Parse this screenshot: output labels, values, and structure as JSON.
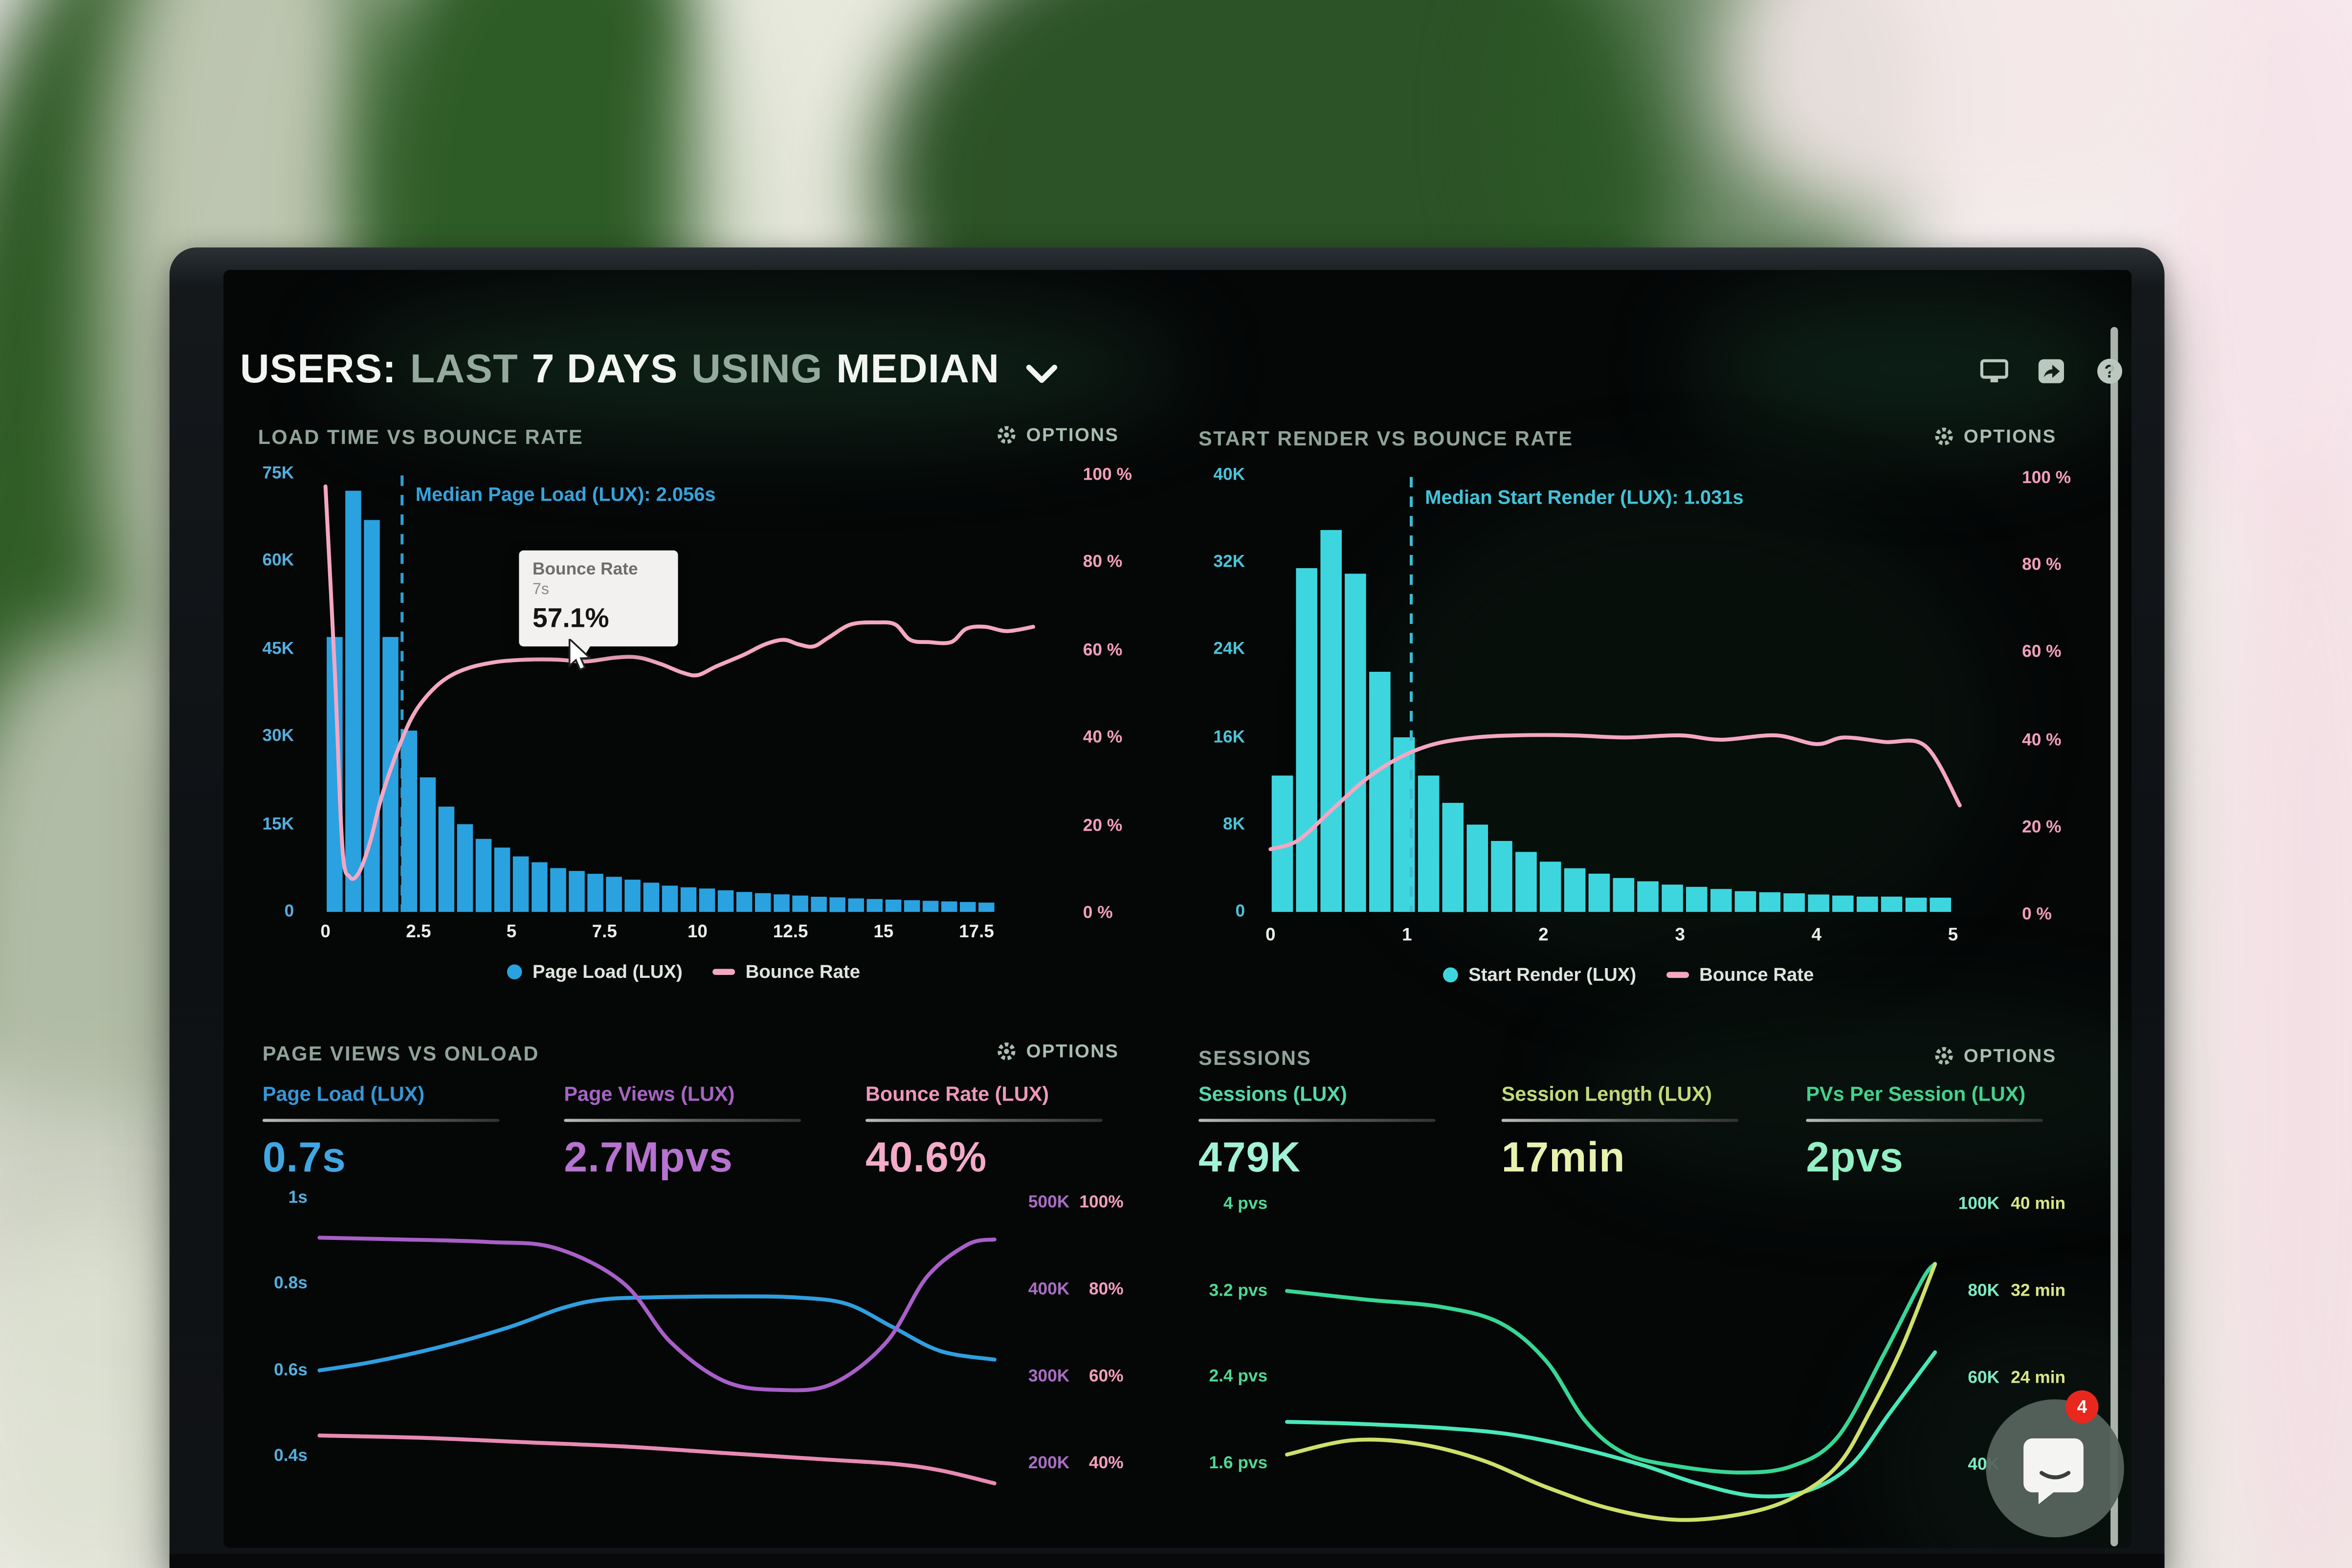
{
  "header": {
    "title_parts": [
      {
        "text": "USERS:",
        "muted": false
      },
      {
        "text": "LAST",
        "muted": true
      },
      {
        "text": "7 DAYS",
        "muted": false
      },
      {
        "text": "USING",
        "muted": true
      },
      {
        "text": "MEDIAN",
        "muted": false
      }
    ],
    "dropdown_icon": "chevron-down-icon",
    "toolbar_icons": [
      "display-icon",
      "share-icon",
      "help-icon"
    ]
  },
  "colors": {
    "screen_bg": "#050707",
    "bar_blue": "#2aa2e0",
    "bar_cyan": "#3ed6de",
    "line_pink": "#f4a7c3",
    "median_blue": "#36a3dd",
    "median_cyan": "#43c3d8",
    "badge_red": "#e8281e"
  },
  "panels": {
    "load_time": {
      "title": "LOAD TIME VS BOUNCE RATE",
      "options_label": "OPTIONS",
      "tooltip": {
        "title": "Bounce Rate",
        "x_value": "7s",
        "value": "57.1%"
      },
      "legend": [
        {
          "label": "Page Load (LUX)"
        },
        {
          "label": "Bounce Rate"
        }
      ]
    },
    "start_render": {
      "title": "START RENDER VS BOUNCE RATE",
      "options_label": "OPTIONS",
      "legend": [
        {
          "label": "Start Render (LUX)"
        },
        {
          "label": "Bounce Rate"
        }
      ]
    },
    "page_views": {
      "title": "PAGE VIEWS VS ONLOAD",
      "options_label": "OPTIONS",
      "metrics": [
        {
          "label": "Page Load (LUX)",
          "value": "0.7s",
          "label_color": "#3596d6",
          "value_color": "#41a6e2"
        },
        {
          "label": "Page Views (LUX)",
          "value": "2.7Mpvs",
          "label_color": "#a565c2",
          "value_color": "#b673cf"
        },
        {
          "label": "Bounce Rate (LUX)",
          "value": "40.6%",
          "label_color": "#ee97ba",
          "value_color": "#f4abc8"
        }
      ]
    },
    "sessions": {
      "title": "SESSIONS",
      "options_label": "OPTIONS",
      "metrics": [
        {
          "label": "Sessions (LUX)",
          "value": "479K",
          "label_color": "#52d8ac",
          "value_color": "#a2f2d6"
        },
        {
          "label": "Session Length (LUX)",
          "value": "17min",
          "label_color": "#c2d97a",
          "value_color": "#e8f2ae"
        },
        {
          "label": "PVs Per Session (LUX)",
          "value": "2pvs",
          "label_color": "#45d18c",
          "value_color": "#93f0c4"
        }
      ]
    }
  },
  "chat_widget": {
    "badge_count": "4",
    "icon": "chat-smile-icon"
  },
  "chart_data": [
    {
      "id": "load_time_vs_bounce_rate",
      "type": "bar+line",
      "title": "LOAD TIME VS BOUNCE RATE",
      "x_unit": "seconds",
      "x_ticks": [
        "0",
        "2.5",
        "5",
        "7.5",
        "10",
        "12.5",
        "15",
        "17.5"
      ],
      "x_range": [
        0,
        18
      ],
      "y_left_ticks": [
        "75K",
        "60K",
        "45K",
        "30K",
        "15K",
        "0"
      ],
      "y_left_range": [
        0,
        75000
      ],
      "y_right_ticks": [
        "100 %",
        "80 %",
        "60 %",
        "40 %",
        "20 %",
        "0 %"
      ],
      "y_right_range": [
        0,
        100
      ],
      "median": {
        "label": "Median Page Load (LUX): 2.056s",
        "value_s": 2.056
      },
      "tooltip": {
        "series": "Bounce Rate",
        "x": "7s",
        "value": "57.1%"
      },
      "bars": {
        "name": "Page Load (LUX)",
        "color": "#2aa2e0",
        "bin_width_s": 0.5,
        "values_k": [
          47,
          72,
          67,
          47,
          31,
          23,
          18,
          15,
          12.5,
          11,
          9.5,
          8.5,
          7.5,
          7,
          6.5,
          6,
          5.5,
          5,
          4.5,
          4.2,
          4,
          3.7,
          3.4,
          3.2,
          3,
          2.8,
          2.6,
          2.5,
          2.3,
          2.2,
          2.1,
          2,
          1.9,
          1.8,
          1.7,
          1.6
        ]
      },
      "line": {
        "name": "Bounce Rate",
        "color": "#f4a7c3",
        "points": [
          [
            0,
            97
          ],
          [
            0.25,
            55
          ],
          [
            0.45,
            15
          ],
          [
            0.65,
            8
          ],
          [
            0.9,
            9
          ],
          [
            1.2,
            16
          ],
          [
            1.5,
            26
          ],
          [
            1.9,
            36
          ],
          [
            2.3,
            44
          ],
          [
            2.7,
            49
          ],
          [
            3.2,
            53
          ],
          [
            3.8,
            55.5
          ],
          [
            4.6,
            57
          ],
          [
            5.4,
            57.5
          ],
          [
            6.2,
            57.5
          ],
          [
            7,
            57.1
          ],
          [
            7.8,
            58
          ],
          [
            8.4,
            58
          ],
          [
            9,
            56.5
          ],
          [
            9.6,
            54.5
          ],
          [
            10,
            54
          ],
          [
            10.5,
            56
          ],
          [
            11.2,
            58.5
          ],
          [
            11.8,
            61
          ],
          [
            12.3,
            62
          ],
          [
            12.7,
            61
          ],
          [
            13.1,
            60.5
          ],
          [
            13.5,
            62.5
          ],
          [
            14.1,
            65.5
          ],
          [
            14.8,
            66
          ],
          [
            15.3,
            65.5
          ],
          [
            15.7,
            62
          ],
          [
            16.2,
            61.5
          ],
          [
            16.8,
            61.5
          ],
          [
            17.2,
            64.5
          ],
          [
            17.7,
            65
          ],
          [
            18.3,
            64
          ],
          [
            19,
            65
          ]
        ]
      }
    },
    {
      "id": "start_render_vs_bounce_rate",
      "type": "bar+line",
      "title": "START RENDER VS BOUNCE RATE",
      "x_unit": "seconds",
      "x_ticks": [
        "0",
        "1",
        "2",
        "3",
        "4",
        "5"
      ],
      "x_range": [
        0,
        5
      ],
      "y_left_ticks": [
        "40K",
        "32K",
        "24K",
        "16K",
        "8K",
        "0"
      ],
      "y_left_range": [
        0,
        40000
      ],
      "y_right_ticks": [
        "100 %",
        "80 %",
        "60 %",
        "40 %",
        "20 %",
        "0 %"
      ],
      "y_right_range": [
        0,
        100
      ],
      "median": {
        "label": "Median Start Render (LUX): 1.031s",
        "value_s": 1.031
      },
      "bars": {
        "name": "Start Render (LUX)",
        "color": "#3ed6de",
        "bin_width_s": 0.1786,
        "values_k": [
          12.5,
          31.5,
          35,
          31,
          22,
          16,
          12.5,
          10,
          8,
          6.5,
          5.5,
          4.6,
          4,
          3.5,
          3.1,
          2.8,
          2.5,
          2.3,
          2.1,
          1.9,
          1.8,
          1.7,
          1.6,
          1.5,
          1.4,
          1.4,
          1.3,
          1.3
        ]
      },
      "line": {
        "name": "Bounce Rate",
        "color": "#f4a7c3",
        "points": [
          [
            0,
            15
          ],
          [
            0.2,
            17
          ],
          [
            0.45,
            24
          ],
          [
            0.7,
            31
          ],
          [
            0.95,
            36
          ],
          [
            1.2,
            39
          ],
          [
            1.5,
            40.5
          ],
          [
            1.8,
            41
          ],
          [
            2.2,
            41
          ],
          [
            2.6,
            40.5
          ],
          [
            3,
            41
          ],
          [
            3.3,
            40
          ],
          [
            3.7,
            41
          ],
          [
            4,
            39
          ],
          [
            4.2,
            40.5
          ],
          [
            4.5,
            39.5
          ],
          [
            4.8,
            38.5
          ],
          [
            5.05,
            25
          ]
        ]
      }
    },
    {
      "id": "page_views_vs_onload",
      "type": "line",
      "title": "PAGE VIEWS VS ONLOAD",
      "y_left_ticks": [
        "1s",
        "0.8s",
        "0.6s",
        "0.4s"
      ],
      "y_left_range_s": [
        0.4,
        1.0
      ],
      "y_right_k_ticks": [
        "500K",
        "400K",
        "300K",
        "200K"
      ],
      "y_right_k_range": [
        200000,
        500000
      ],
      "y_right_pct_ticks": [
        "100%",
        "80%",
        "60%",
        "40%"
      ],
      "y_right_pct_range": [
        40,
        100
      ],
      "series": [
        {
          "name": "Page Load (LUX)",
          "color": "#2f9fe0",
          "axis": "seconds",
          "points": [
            [
              0,
              0.6
            ],
            [
              0.08,
              0.62
            ],
            [
              0.18,
              0.655
            ],
            [
              0.28,
              0.7
            ],
            [
              0.36,
              0.745
            ],
            [
              0.42,
              0.765
            ],
            [
              0.5,
              0.77
            ],
            [
              0.6,
              0.772
            ],
            [
              0.7,
              0.77
            ],
            [
              0.78,
              0.755
            ],
            [
              0.85,
              0.7
            ],
            [
              0.92,
              0.645
            ],
            [
              1,
              0.625
            ]
          ]
        },
        {
          "name": "Page Views (LUX)",
          "color": "#a85fc8",
          "axis": "pageviews_k",
          "points": [
            [
              0,
              460
            ],
            [
              0.12,
              458
            ],
            [
              0.25,
              455
            ],
            [
              0.35,
              448
            ],
            [
              0.45,
              408
            ],
            [
              0.52,
              340
            ],
            [
              0.6,
              295
            ],
            [
              0.68,
              285
            ],
            [
              0.76,
              292
            ],
            [
              0.84,
              340
            ],
            [
              0.9,
              415
            ],
            [
              0.96,
              452
            ],
            [
              1,
              458
            ]
          ]
        },
        {
          "name": "Bounce Rate",
          "color": "#e88ab4",
          "axis": "percent",
          "points": [
            [
              0,
              46.5
            ],
            [
              0.15,
              46
            ],
            [
              0.3,
              45
            ],
            [
              0.45,
              44
            ],
            [
              0.6,
              42.5
            ],
            [
              0.75,
              41
            ],
            [
              0.85,
              40
            ],
            [
              0.92,
              38.5
            ],
            [
              1,
              35.5
            ]
          ]
        }
      ]
    },
    {
      "id": "sessions",
      "type": "line",
      "title": "SESSIONS",
      "y_left_ticks": [
        "4 pvs",
        "3.2 pvs",
        "2.4 pvs",
        "1.6 pvs"
      ],
      "y_left_range_pvs": [
        1.6,
        4
      ],
      "y_right_k_ticks": [
        "100K",
        "80K",
        "60K",
        "40K"
      ],
      "y_right_k_range": [
        40000,
        100000
      ],
      "y_right_min_ticks": [
        "40 min",
        "32 min",
        "24 min"
      ],
      "y_right_min_range": [
        16,
        40
      ],
      "series": [
        {
          "name": "PVs Per Session (LUX)",
          "color": "#38d695",
          "axis": "pvs",
          "points": [
            [
              0,
              3.2
            ],
            [
              0.12,
              3.12
            ],
            [
              0.24,
              3.05
            ],
            [
              0.33,
              2.9
            ],
            [
              0.4,
              2.55
            ],
            [
              0.46,
              2.0
            ],
            [
              0.52,
              1.7
            ],
            [
              0.6,
              1.58
            ],
            [
              0.7,
              1.52
            ],
            [
              0.78,
              1.58
            ],
            [
              0.85,
              1.85
            ],
            [
              0.92,
              2.6
            ],
            [
              0.98,
              3.3
            ],
            [
              1,
              3.45
            ]
          ]
        },
        {
          "name": "Sessions (LUX)",
          "color": "#49e8b8",
          "axis": "sessions_k",
          "points": [
            [
              0,
              50
            ],
            [
              0.12,
              49.5
            ],
            [
              0.25,
              48.5
            ],
            [
              0.35,
              47
            ],
            [
              0.45,
              44
            ],
            [
              0.55,
              40
            ],
            [
              0.63,
              36
            ],
            [
              0.72,
              33
            ],
            [
              0.8,
              34
            ],
            [
              0.87,
              40
            ],
            [
              0.93,
              52
            ],
            [
              1,
              66
            ]
          ]
        },
        {
          "name": "Session Length (LUX)",
          "color": "#cfe06a",
          "axis": "minutes",
          "points": [
            [
              0,
              17
            ],
            [
              0.1,
              18.3
            ],
            [
              0.2,
              18
            ],
            [
              0.3,
              16.5
            ],
            [
              0.4,
              14
            ],
            [
              0.5,
              12
            ],
            [
              0.6,
              11
            ],
            [
              0.7,
              11.5
            ],
            [
              0.78,
              13
            ],
            [
              0.85,
              16
            ],
            [
              0.9,
              21
            ],
            [
              0.95,
              27
            ],
            [
              1,
              34.5
            ]
          ]
        }
      ]
    }
  ]
}
